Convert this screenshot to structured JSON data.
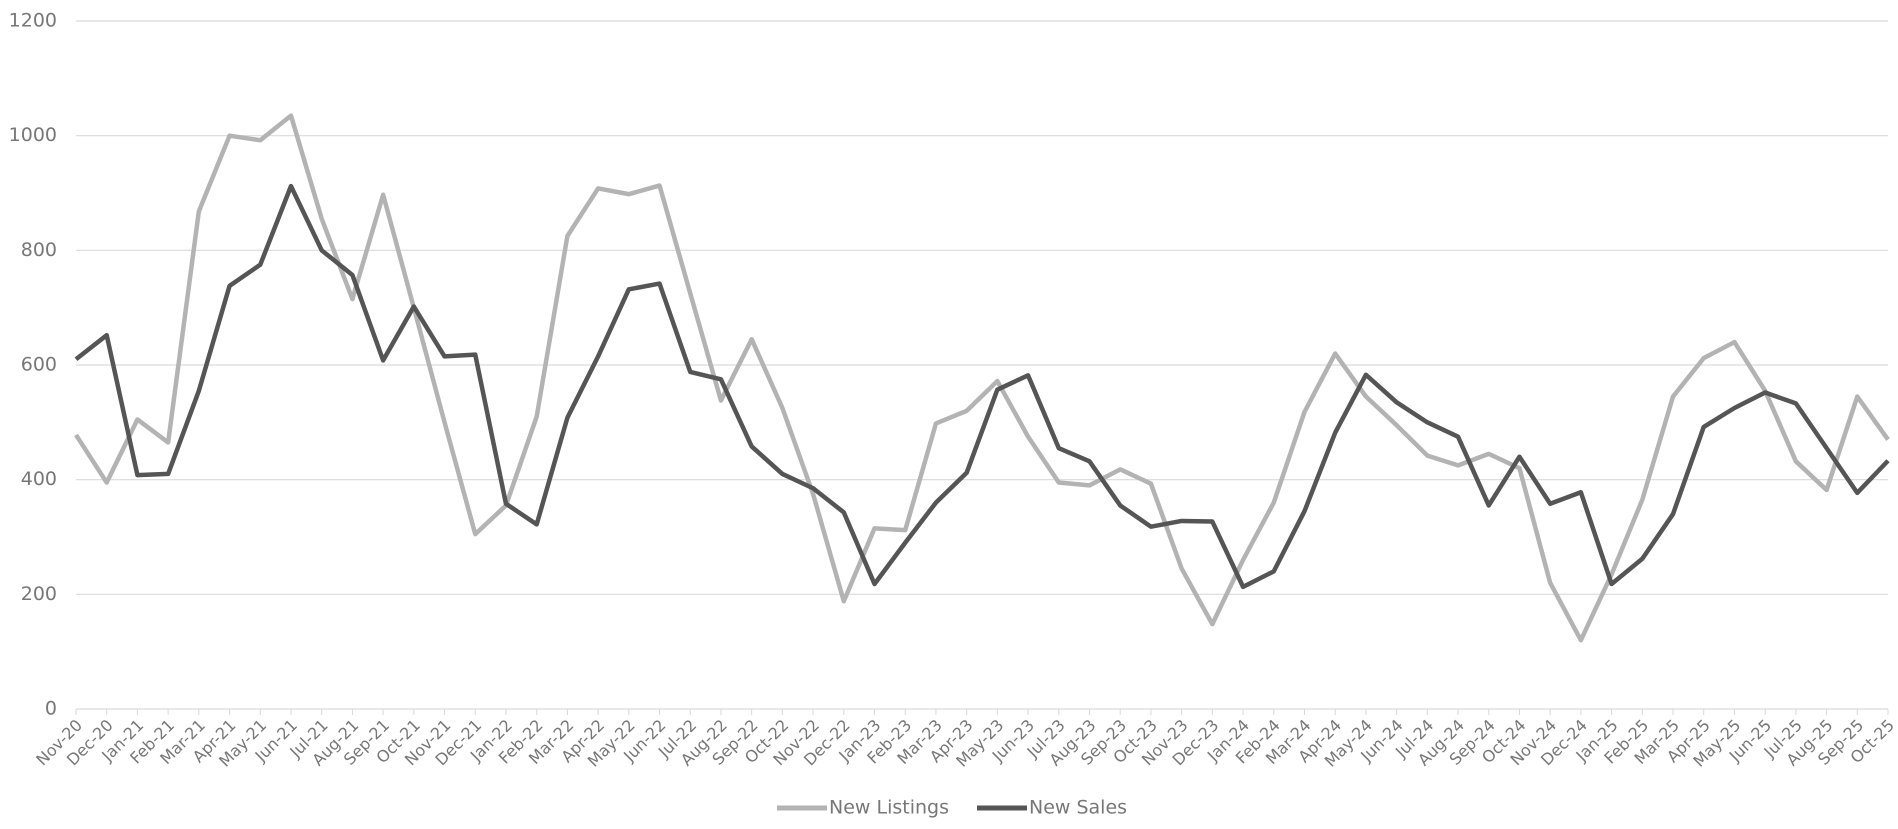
{
  "chart_data": {
    "type": "line",
    "categories": [
      "Nov-20",
      "Dec-20",
      "Jan-21",
      "Feb-21",
      "Mar-21",
      "Apr-21",
      "May-21",
      "Jun-21",
      "Jul-21",
      "Aug-21",
      "Sep-21",
      "Oct-21",
      "Nov-21",
      "Dec-21",
      "Jan-22",
      "Feb-22",
      "Mar-22",
      "Apr-22",
      "May-22",
      "Jun-22",
      "Jul-22",
      "Aug-22",
      "Sep-22",
      "Oct-22",
      "Nov-22",
      "Dec-22",
      "Jan-23",
      "Feb-23",
      "Mar-23",
      "Apr-23",
      "May-23",
      "Jun-23",
      "Jul-23",
      "Aug-23",
      "Sep-23",
      "Oct-23",
      "Nov-23",
      "Dec-23",
      "Jan-24",
      "Feb-24",
      "Mar-24",
      "Apr-24",
      "May-24",
      "Jun-24",
      "Jul-24",
      "Aug-24",
      "Sep-24",
      "Oct-24",
      "Nov-24",
      "Dec-24",
      "Jan-25",
      "Feb-25",
      "Mar-25",
      "Apr-25",
      "May-25",
      "Jun-25",
      "Jul-25",
      "Aug-25",
      "Sep-25",
      "Oct-25"
    ],
    "series": [
      {
        "name": "New Listings",
        "color": "#b3b3b3",
        "values": [
          478,
          395,
          505,
          465,
          868,
          1000,
          992,
          1035,
          855,
          715,
          897,
          700,
          500,
          305,
          355,
          510,
          825,
          908,
          898,
          913,
          725,
          538,
          645,
          525,
          375,
          188,
          315,
          312,
          498,
          520,
          572,
          475,
          395,
          390,
          418,
          393,
          245,
          148,
          260,
          360,
          518,
          620,
          545,
          495,
          442,
          425,
          445,
          420,
          220,
          120,
          235,
          365,
          545,
          612,
          640,
          555,
          432,
          382,
          545,
          470
        ]
      },
      {
        "name": "New Sales",
        "color": "#555555",
        "values": [
          610,
          652,
          408,
          410,
          555,
          738,
          775,
          912,
          800,
          757,
          608,
          702,
          615,
          618,
          358,
          322,
          508,
          615,
          732,
          742,
          588,
          575,
          458,
          410,
          385,
          343,
          218,
          290,
          360,
          412,
          557,
          582,
          455,
          432,
          355,
          318,
          328,
          327,
          213,
          240,
          345,
          482,
          583,
          535,
          500,
          475,
          355,
          440,
          358,
          378,
          218,
          262,
          340,
          492,
          525,
          552,
          533,
          455,
          377,
          433
        ]
      }
    ],
    "ylim": [
      0,
      1200
    ],
    "yticks": [
      0,
      200,
      400,
      600,
      800,
      1000,
      1200
    ],
    "grid": true,
    "legend": "bottom"
  }
}
